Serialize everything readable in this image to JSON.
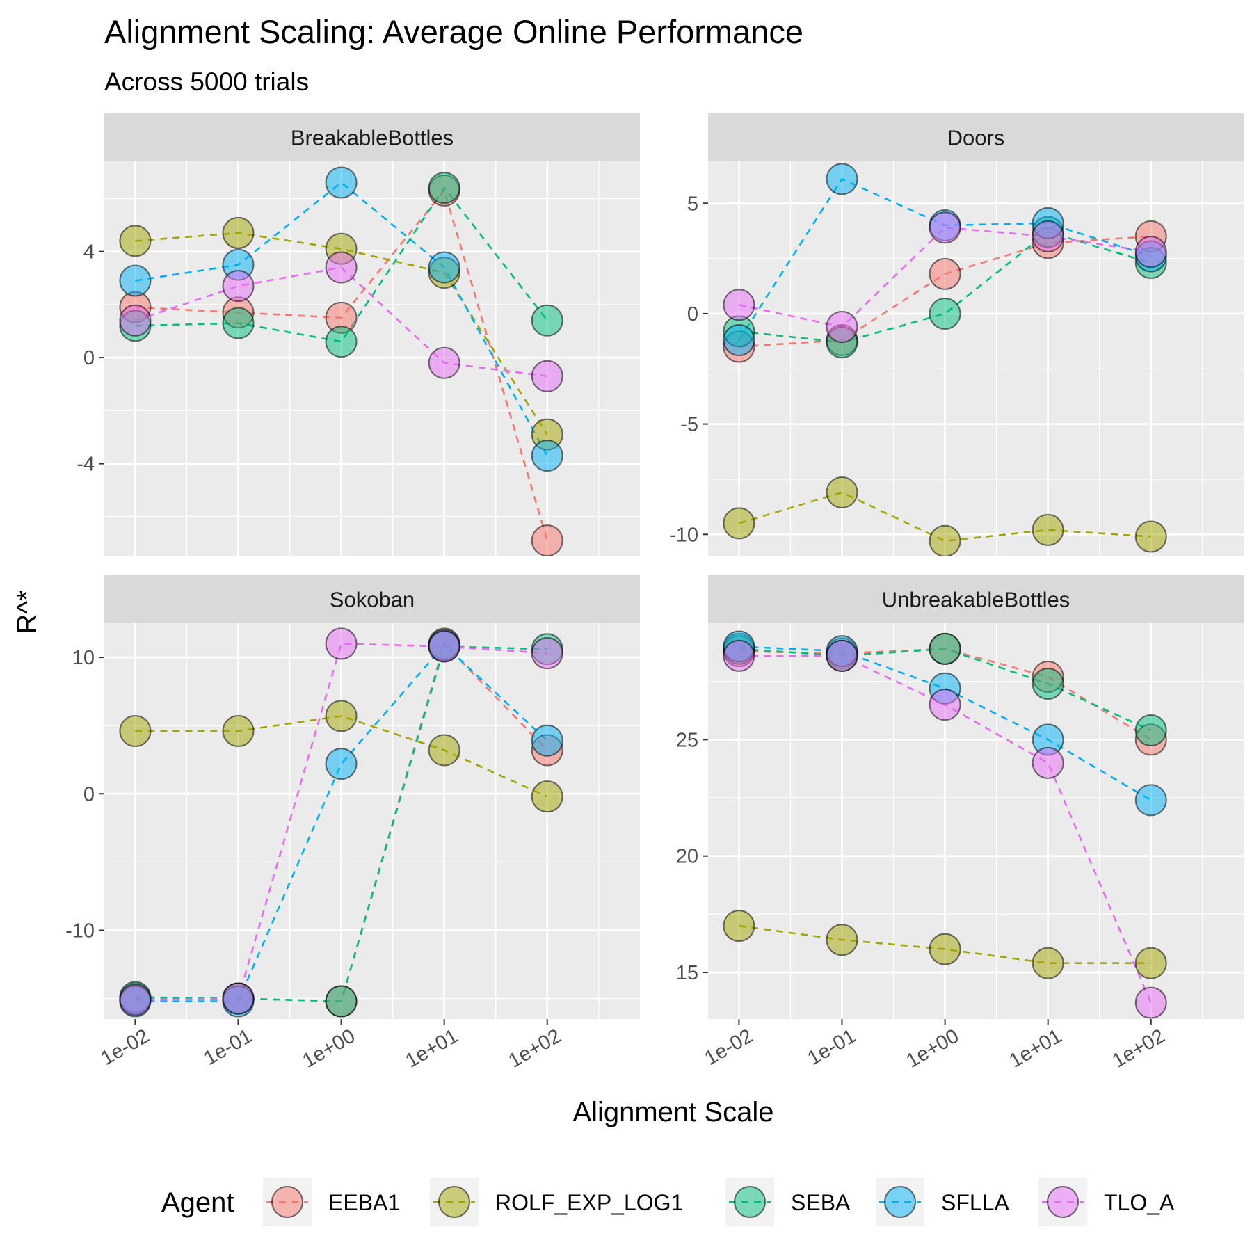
{
  "title": "Alignment Scaling: Average Online Performance",
  "subtitle": "Across 5000 trials",
  "chart_data": {
    "type": "line",
    "xlabel": "Alignment Scale",
    "ylabel": "R^*",
    "x": [
      "1e-02",
      "1e-01",
      "1e+00",
      "1e+01",
      "1e+02"
    ],
    "legend": {
      "title": "Agent",
      "placement": "bottom",
      "entries": [
        {
          "name": "EEBA1",
          "color": "#F8766D"
        },
        {
          "name": "ROLF_EXP_LOG1",
          "color": "#A3A500"
        },
        {
          "name": "SEBA",
          "color": "#00BF7D"
        },
        {
          "name": "SFLLA",
          "color": "#00B0F6"
        },
        {
          "name": "TLO_A",
          "color": "#E76BF3"
        }
      ]
    },
    "panels": [
      {
        "name": "BreakableBottles",
        "ylim": [
          -7.5,
          7.4
        ],
        "yticks": [
          -4,
          0,
          4
        ],
        "yticklabels": [
          "-4",
          "0",
          "4"
        ],
        "series": [
          {
            "name": "EEBA1",
            "values": [
              1.9,
              1.7,
              1.5,
              6.3,
              -6.9
            ]
          },
          {
            "name": "ROLF_EXP_LOG1",
            "values": [
              4.4,
              4.7,
              4.1,
              3.2,
              -2.9
            ]
          },
          {
            "name": "SEBA",
            "values": [
              1.2,
              1.3,
              0.6,
              6.4,
              1.4
            ]
          },
          {
            "name": "SFLLA",
            "values": [
              2.9,
              3.5,
              6.6,
              3.4,
              -3.7
            ]
          },
          {
            "name": "TLO_A",
            "values": [
              1.4,
              2.7,
              3.4,
              -0.2,
              -0.7
            ]
          }
        ]
      },
      {
        "name": "Doors",
        "ylim": [
          -11.0,
          6.9
        ],
        "yticks": [
          -10,
          -5,
          0,
          5
        ],
        "yticklabels": [
          "-10",
          "-5",
          "0",
          "5"
        ],
        "series": [
          {
            "name": "EEBA1",
            "values": [
              -1.5,
              -1.2,
              1.8,
              3.2,
              3.5
            ]
          },
          {
            "name": "ROLF_EXP_LOG1",
            "values": [
              -9.5,
              -8.1,
              -10.3,
              -9.8,
              -10.1
            ]
          },
          {
            "name": "SEBA",
            "values": [
              -0.8,
              -1.3,
              0.0,
              3.7,
              2.3
            ]
          },
          {
            "name": "SFLLA",
            "values": [
              -1.2,
              6.1,
              4.0,
              4.1,
              2.6
            ]
          },
          {
            "name": "TLO_A",
            "values": [
              0.4,
              -0.6,
              3.9,
              3.5,
              2.8
            ]
          }
        ]
      },
      {
        "name": "Sokoban",
        "ylim": [
          -16.5,
          12.5
        ],
        "yticks": [
          -10,
          0,
          10
        ],
        "yticklabels": [
          "-10",
          "0",
          "10"
        ],
        "series": [
          {
            "name": "EEBA1",
            "values": [
              -15.0,
              -15.0,
              -15.2,
              11.0,
              3.2
            ]
          },
          {
            "name": "ROLF_EXP_LOG1",
            "values": [
              4.6,
              4.6,
              5.7,
              3.2,
              -0.2
            ]
          },
          {
            "name": "SEBA",
            "values": [
              -14.9,
              -15.0,
              -15.2,
              10.8,
              10.6
            ]
          },
          {
            "name": "SFLLA",
            "values": [
              -15.2,
              -15.2,
              2.2,
              10.9,
              3.9
            ]
          },
          {
            "name": "TLO_A",
            "values": [
              -15.1,
              -15.0,
              11.0,
              10.8,
              10.3
            ]
          }
        ]
      },
      {
        "name": "UnbreakableBottles",
        "ylim": [
          13.0,
          30.0
        ],
        "yticks": [
          15,
          20,
          25
        ],
        "yticklabels": [
          "15",
          "20",
          "25"
        ],
        "series": [
          {
            "name": "EEBA1",
            "values": [
              28.8,
              28.7,
              28.9,
              27.7,
              25.0
            ]
          },
          {
            "name": "ROLF_EXP_LOG1",
            "values": [
              17.0,
              16.4,
              16.0,
              15.4,
              15.4
            ]
          },
          {
            "name": "SEBA",
            "values": [
              28.9,
              28.6,
              28.9,
              27.4,
              25.4
            ]
          },
          {
            "name": "SFLLA",
            "values": [
              29.0,
              28.8,
              27.2,
              25.0,
              22.4
            ]
          },
          {
            "name": "TLO_A",
            "values": [
              28.6,
              28.6,
              26.5,
              24.0,
              13.7
            ]
          }
        ]
      }
    ]
  }
}
